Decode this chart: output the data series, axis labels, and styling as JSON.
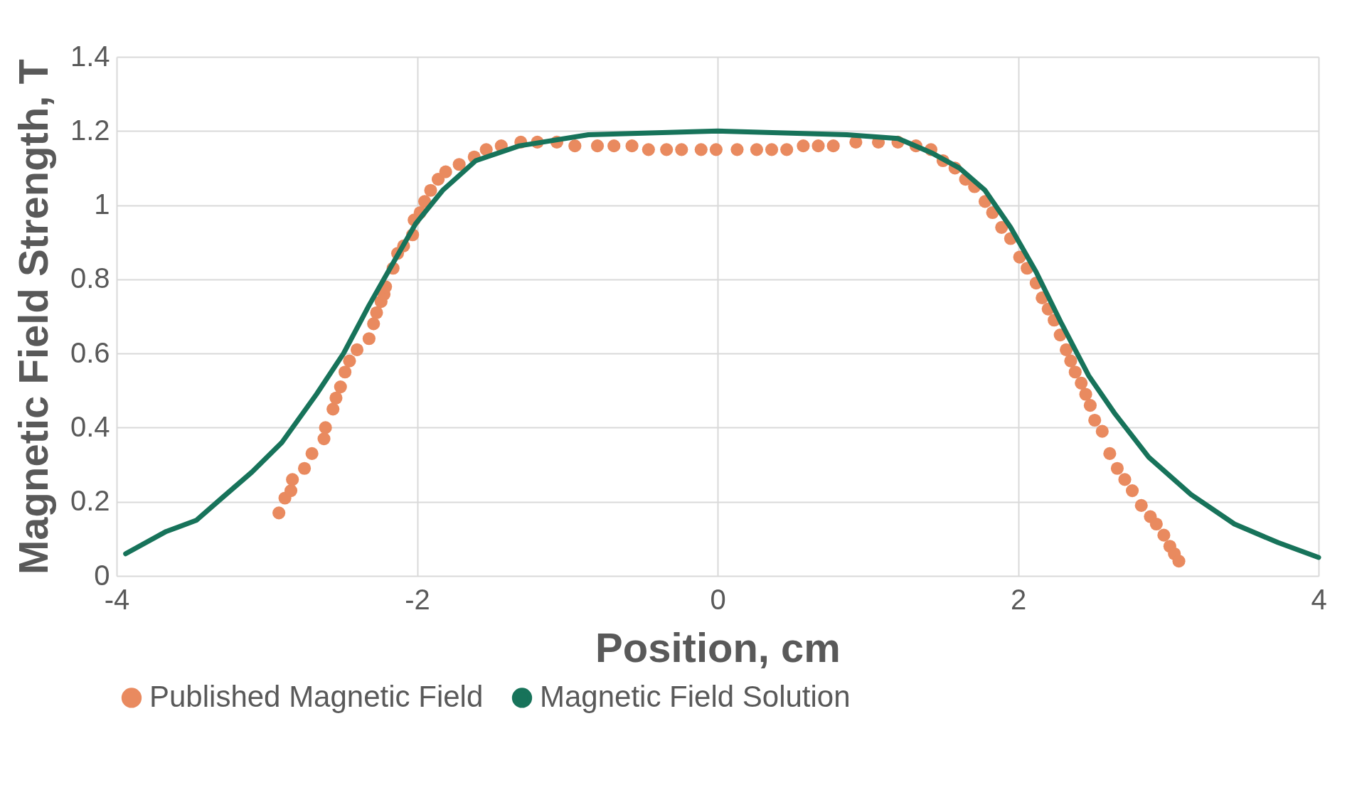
{
  "chart_data": {
    "type": "scatter",
    "xlabel": "Position, cm",
    "ylabel": "Magnetic Field Strength, T",
    "xlim": [
      -4,
      4
    ],
    "xticks": [
      -4,
      -2,
      0,
      2,
      4
    ],
    "ylim": [
      0,
      1.4
    ],
    "yticks": [
      0,
      0.2,
      0.4,
      0.6,
      0.8,
      1,
      1.2,
      1.4
    ],
    "grid": true,
    "legend": "bottom",
    "series": [
      {
        "name": "Published Magnetic Field",
        "marker": "circle",
        "color": "#e98a5f",
        "x": [
          -2.92,
          -2.88,
          -2.84,
          -2.83,
          -2.75,
          -2.7,
          -2.62,
          -2.61,
          -2.56,
          -2.54,
          -2.51,
          -2.48,
          -2.45,
          -2.4,
          -2.32,
          -2.29,
          -2.27,
          -2.24,
          -2.22,
          -2.21,
          -2.16,
          -2.13,
          -2.09,
          -2.03,
          -2.02,
          -1.98,
          -1.95,
          -1.91,
          -1.86,
          -1.81,
          -1.72,
          -1.62,
          -1.54,
          -1.44,
          -1.31,
          -1.2,
          -1.07,
          -0.95,
          -0.8,
          -0.69,
          -0.57,
          -0.46,
          -0.34,
          -0.24,
          -0.11,
          -0.01,
          0.13,
          0.26,
          0.36,
          0.46,
          0.57,
          0.67,
          0.77,
          0.92,
          1.07,
          1.2,
          1.32,
          1.42,
          1.5,
          1.58,
          1.65,
          1.71,
          1.78,
          1.83,
          1.89,
          1.95,
          2.01,
          2.06,
          2.12,
          2.16,
          2.2,
          2.24,
          2.28,
          2.32,
          2.35,
          2.38,
          2.42,
          2.45,
          2.48,
          2.51,
          2.56,
          2.61,
          2.66,
          2.71,
          2.76,
          2.82,
          2.88,
          2.92,
          2.97,
          3.01,
          3.04,
          3.07
        ],
        "values": [
          0.17,
          0.21,
          0.23,
          0.26,
          0.29,
          0.33,
          0.37,
          0.4,
          0.45,
          0.48,
          0.51,
          0.55,
          0.58,
          0.61,
          0.64,
          0.68,
          0.71,
          0.74,
          0.76,
          0.78,
          0.83,
          0.87,
          0.89,
          0.92,
          0.96,
          0.98,
          1.01,
          1.04,
          1.07,
          1.09,
          1.11,
          1.13,
          1.15,
          1.16,
          1.17,
          1.17,
          1.17,
          1.16,
          1.16,
          1.16,
          1.16,
          1.15,
          1.15,
          1.15,
          1.15,
          1.15,
          1.15,
          1.15,
          1.15,
          1.15,
          1.16,
          1.16,
          1.16,
          1.17,
          1.17,
          1.17,
          1.16,
          1.15,
          1.12,
          1.1,
          1.07,
          1.05,
          1.01,
          0.98,
          0.94,
          0.91,
          0.86,
          0.83,
          0.79,
          0.75,
          0.72,
          0.69,
          0.65,
          0.61,
          0.58,
          0.55,
          0.52,
          0.49,
          0.46,
          0.42,
          0.39,
          0.33,
          0.29,
          0.26,
          0.23,
          0.19,
          0.16,
          0.14,
          0.11,
          0.08,
          0.06,
          0.04
        ]
      },
      {
        "name": "Magnetic Field Solution",
        "type": "line",
        "marker": "none",
        "line_style": "solid",
        "color": "#17735a",
        "x": [
          -3.94,
          -3.67,
          -3.47,
          -3.3,
          -3.1,
          -2.9,
          -2.67,
          -2.49,
          -2.32,
          -2.18,
          -2.01,
          -1.83,
          -1.61,
          -1.32,
          -0.86,
          0,
          0.86,
          1.2,
          1.43,
          1.61,
          1.78,
          1.95,
          2.12,
          2.29,
          2.47,
          2.64,
          2.87,
          3.15,
          3.44,
          3.73,
          4.0
        ],
        "values": [
          0.06,
          0.12,
          0.15,
          0.21,
          0.28,
          0.36,
          0.49,
          0.6,
          0.73,
          0.83,
          0.95,
          1.04,
          1.12,
          1.16,
          1.19,
          1.2,
          1.19,
          1.18,
          1.14,
          1.1,
          1.04,
          0.94,
          0.82,
          0.68,
          0.54,
          0.44,
          0.32,
          0.22,
          0.14,
          0.09,
          0.05
        ]
      }
    ]
  }
}
